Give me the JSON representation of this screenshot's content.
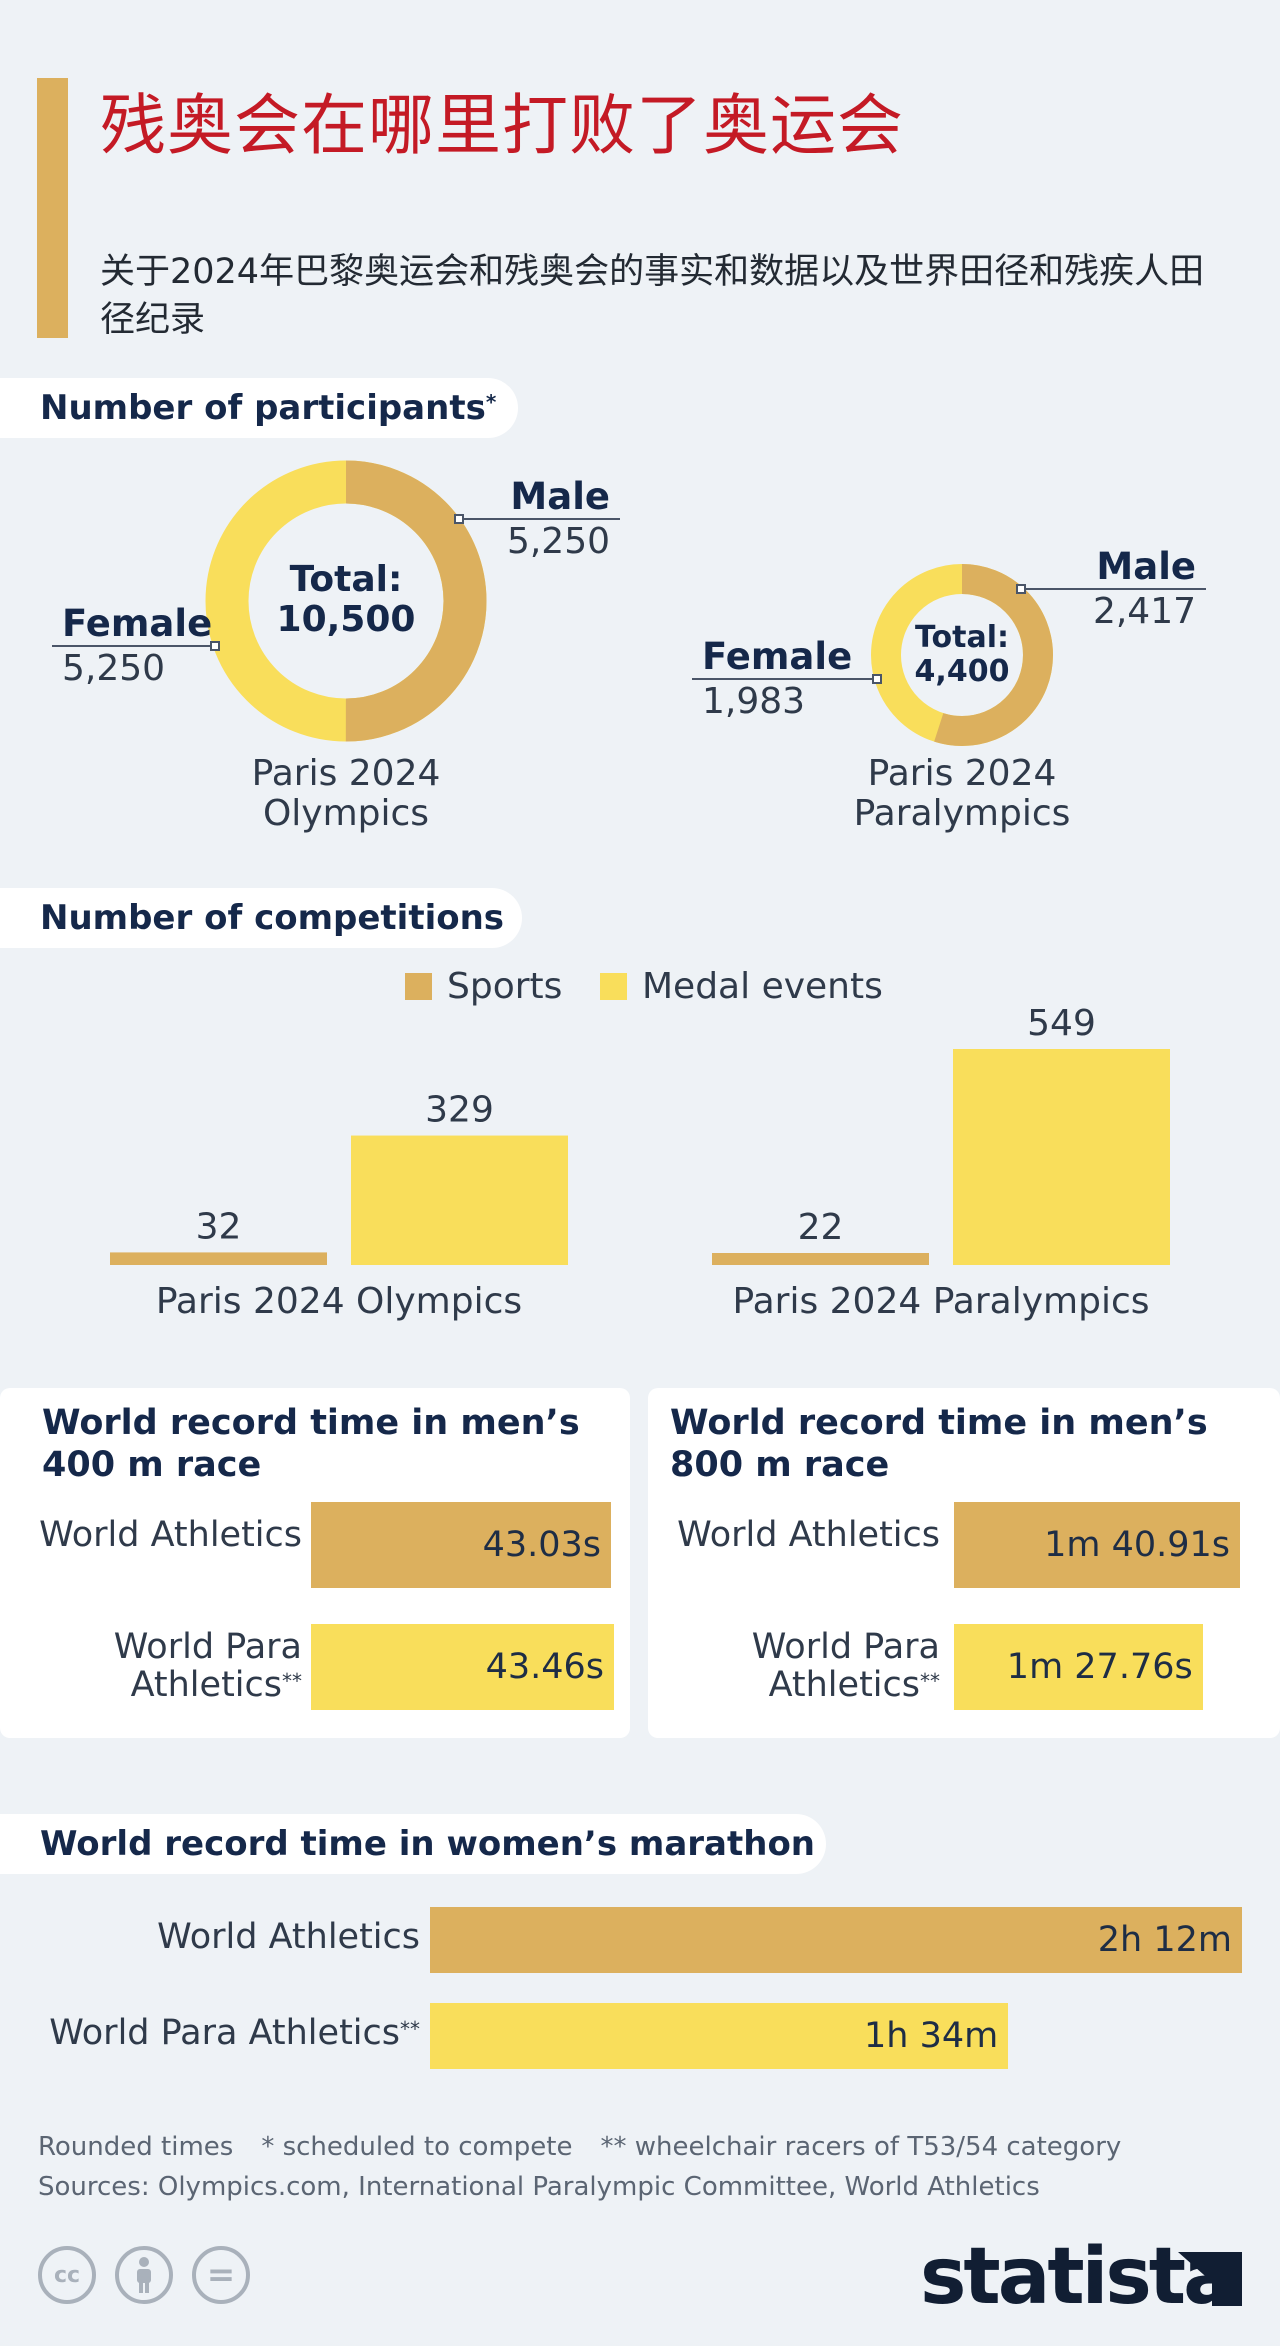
{
  "header": {
    "title": "残奥会在哪里打败了奥运会",
    "subtitle": "关于2024年巴黎奥运会和残奥会的事实和数据以及世界田径和残疾人田径纪录"
  },
  "colors": {
    "gold": "#dcb05e",
    "yellow": "#f9de5b",
    "title_red": "#c41a25"
  },
  "sections": {
    "participants": {
      "title": "Number of participants",
      "mark": "*"
    },
    "competitions": {
      "title": "Number of competitions"
    }
  },
  "chart_data": [
    {
      "type": "pie",
      "title": "Paris 2024 Olympics",
      "name_lines": [
        "Paris 2024",
        "Olympics"
      ],
      "total_label": "Total:",
      "total_value": "10,500",
      "slices": [
        {
          "name": "Male",
          "value": 5250,
          "value_label": "5,250"
        },
        {
          "name": "Female",
          "value": 5250,
          "value_label": "5,250"
        }
      ]
    },
    {
      "type": "pie",
      "title": "Paris 2024 Paralympics",
      "name_lines": [
        "Paris 2024",
        "Paralympics"
      ],
      "total_label": "Total:",
      "total_value": "4,400",
      "slices": [
        {
          "name": "Male",
          "value": 2417,
          "value_label": "2,417"
        },
        {
          "name": "Female",
          "value": 1983,
          "value_label": "1,983"
        }
      ]
    },
    {
      "type": "bar",
      "title": "Number of competitions",
      "legend": [
        "Sports",
        "Medal events"
      ],
      "categories": [
        "Paris 2024 Olympics",
        "Paris 2024 Paralympics"
      ],
      "series": [
        {
          "name": "Sports",
          "values": [
            32,
            22
          ]
        },
        {
          "name": "Medal events",
          "values": [
            329,
            549
          ]
        }
      ]
    },
    {
      "type": "bar",
      "orientation": "horizontal",
      "title": "World record time in men’s 400 m race",
      "categories": [
        "World Athletics",
        "World Para Athletics"
      ],
      "label_mark": [
        "",
        "**"
      ],
      "values": [
        43.03,
        43.46
      ],
      "value_labels": [
        "43.03s",
        "43.46s"
      ],
      "unit": "s"
    },
    {
      "type": "bar",
      "orientation": "horizontal",
      "title": "World record time in men’s 800 m race",
      "categories": [
        "World Athletics",
        "World Para Athletics"
      ],
      "label_mark": [
        "",
        "**"
      ],
      "values": [
        100.91,
        87.76
      ],
      "value_labels": [
        "1m 40.91s",
        "1m 27.76s"
      ],
      "unit": "s"
    },
    {
      "type": "bar",
      "orientation": "horizontal",
      "title": "World record time in women’s marathon",
      "categories": [
        "World Athletics",
        "World Para Athletics"
      ],
      "label_mark": [
        "",
        "**"
      ],
      "values": [
        132,
        94
      ],
      "value_labels": [
        "2h 12m",
        "1h 34m"
      ],
      "unit": "min"
    }
  ],
  "footer": {
    "note1": "Rounded times",
    "note2": "* scheduled to compete",
    "note3": "** wheelchair racers of T53/54 category",
    "sources": "Sources: Olympics.com, International Paralympic Committee, World Athletics",
    "license_icons": [
      "cc-icon",
      "person-icon",
      "equals-icon"
    ],
    "cc_text": "cc",
    "eq_text": "=",
    "logo": "statista"
  }
}
